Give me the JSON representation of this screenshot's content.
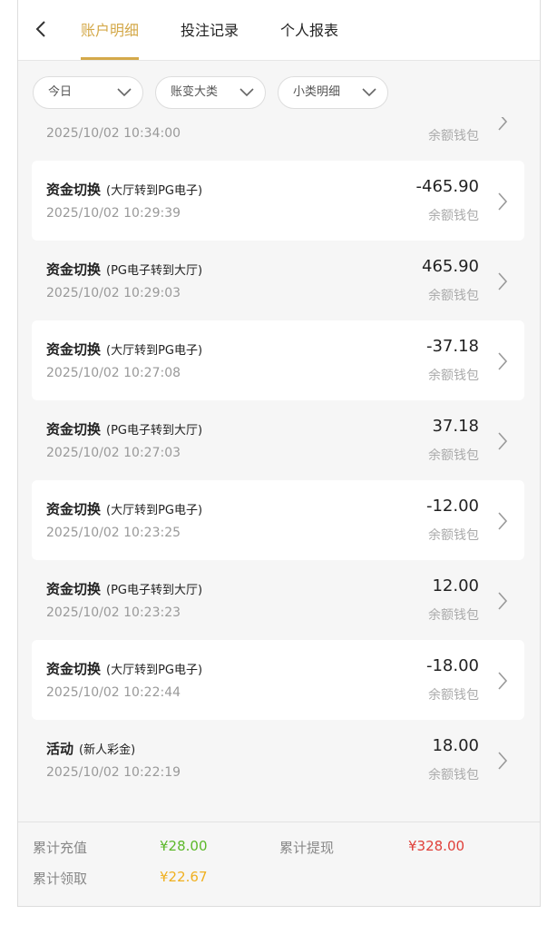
{
  "header": {
    "tabs": [
      "账户明细",
      "投注记录",
      "个人报表"
    ]
  },
  "filters": [
    "今日",
    "账变大类",
    "小类明细"
  ],
  "records": [
    {
      "time": "2025/10/02 10:34:00",
      "wallet": "余额钱包"
    },
    {
      "title": "资金切换",
      "detail": "(大厅转到PG电子)",
      "time": "2025/10/02 10:29:39",
      "amount": "-465.90",
      "wallet": "余额钱包"
    },
    {
      "title": "资金切换",
      "detail": "(PG电子转到大厅)",
      "time": "2025/10/02 10:29:03",
      "amount": "465.90",
      "wallet": "余额钱包"
    },
    {
      "title": "资金切换",
      "detail": "(大厅转到PG电子)",
      "time": "2025/10/02 10:27:08",
      "amount": "-37.18",
      "wallet": "余额钱包"
    },
    {
      "title": "资金切换",
      "detail": "(PG电子转到大厅)",
      "time": "2025/10/02 10:27:03",
      "amount": "37.18",
      "wallet": "余额钱包"
    },
    {
      "title": "资金切换",
      "detail": "(大厅转到PG电子)",
      "time": "2025/10/02 10:23:25",
      "amount": "-12.00",
      "wallet": "余额钱包"
    },
    {
      "title": "资金切换",
      "detail": "(PG电子转到大厅)",
      "time": "2025/10/02 10:23:23",
      "amount": "12.00",
      "wallet": "余额钱包"
    },
    {
      "title": "资金切换",
      "detail": "(大厅转到PG电子)",
      "time": "2025/10/02 10:22:44",
      "amount": "-18.00",
      "wallet": "余额钱包"
    },
    {
      "title": "活动",
      "detail": "(新人彩金)",
      "time": "2025/10/02 10:22:19",
      "amount": "18.00",
      "wallet": "余额钱包"
    }
  ],
  "summary": {
    "recharge_label": "累计充值",
    "recharge": "¥28.00",
    "withdraw_label": "累计提现",
    "withdraw": "¥328.00",
    "claim_label": "累计领取",
    "claim": "¥22.67"
  }
}
